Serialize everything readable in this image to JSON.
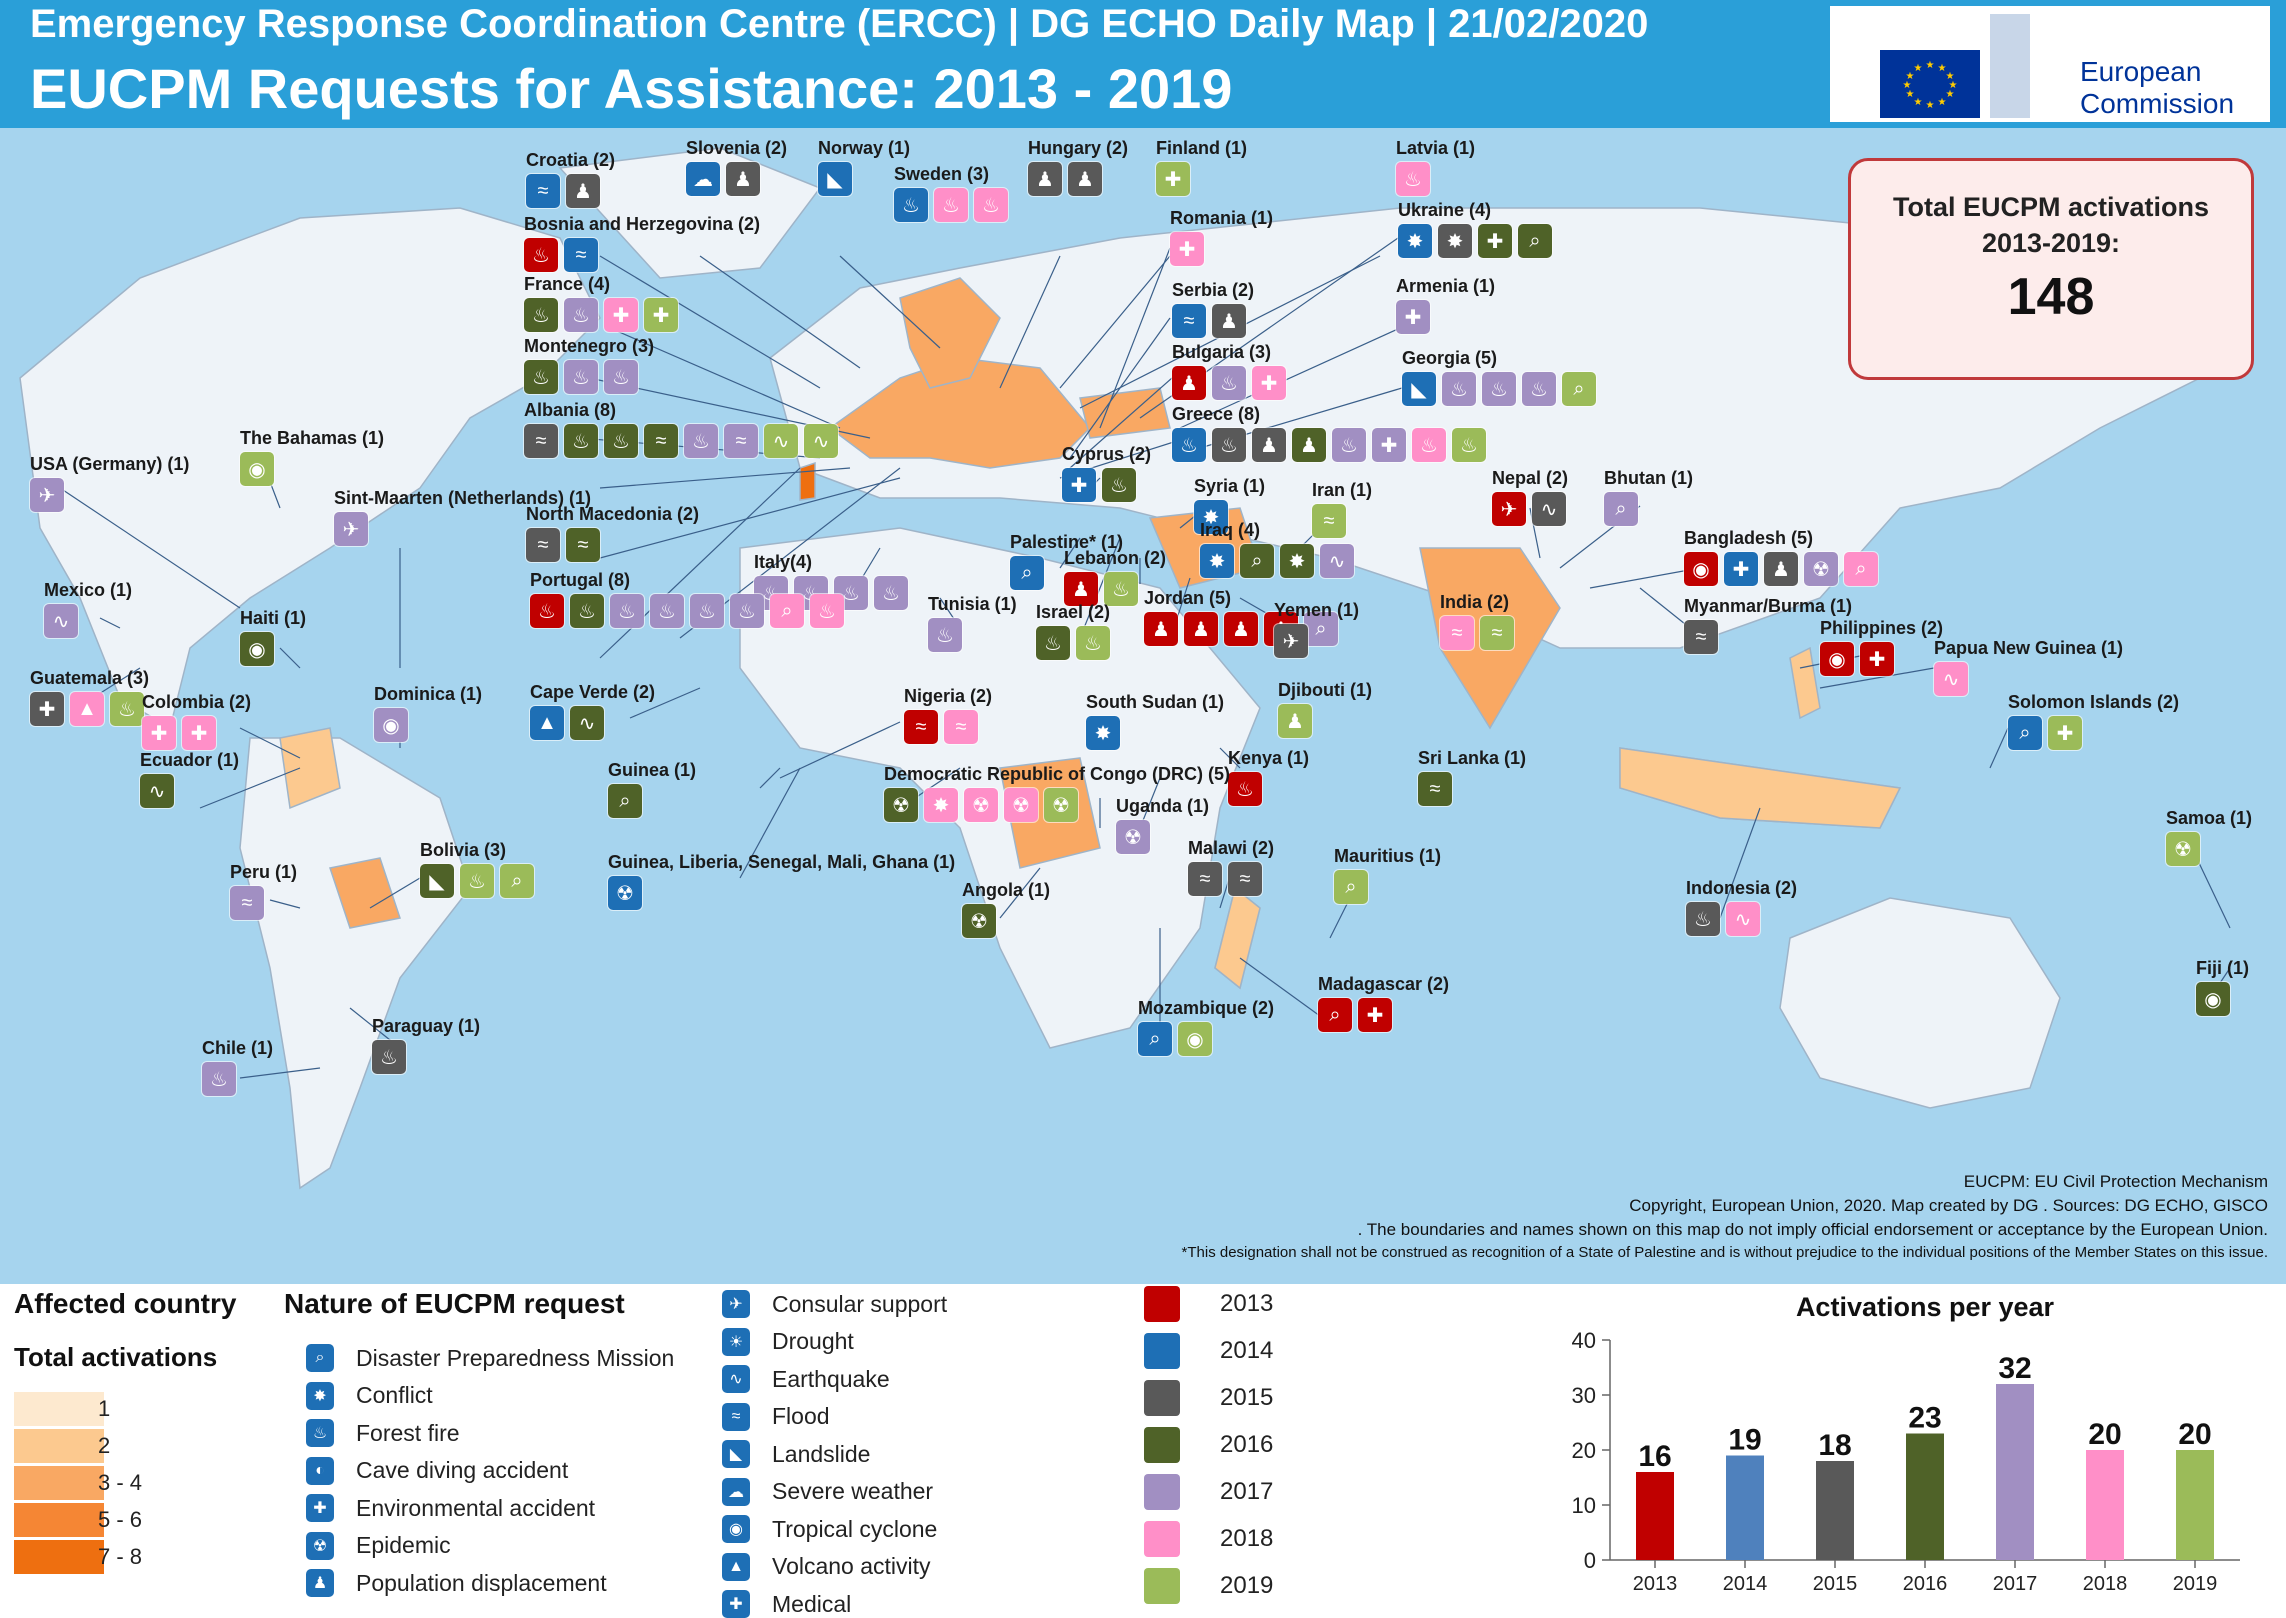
{
  "header": {
    "line1": "Emergency Response Coordination  Centre (ERCC) | DG ECHO  Daily Map  | 21/02/2020",
    "title": "EUCPM Requests for Assistance: 2013 - 2019",
    "logo_text_1": "European",
    "logo_text_2": "Commission"
  },
  "total": {
    "label_1": "Total EUCPM activations",
    "label_2": "2013-2019:",
    "value": "148"
  },
  "colors": {
    "ocean": "#a6d4ee",
    "land": "#eef3f8",
    "y2013": "#c00000",
    "y2014": "#1e6fb5",
    "y2015": "#595959",
    "y2016": "#4f6228",
    "y2017": "#a18fc2",
    "y2018": "#ff8fc8",
    "y2019": "#9bbb59"
  },
  "countries": [
    {
      "name": "Croatia (2)",
      "icons": [
        [
          "y2014",
          "≈"
        ],
        [
          "y2015",
          "♟"
        ]
      ]
    },
    {
      "name": "Slovenia (2)",
      "icons": [
        [
          "y2014",
          "☁"
        ],
        [
          "y2015",
          "♟"
        ]
      ]
    },
    {
      "name": "Norway (1)",
      "icons": [
        [
          "y2014",
          "◣"
        ]
      ]
    },
    {
      "name": "Hungary (2)",
      "icons": [
        [
          "y2015",
          "♟"
        ],
        [
          "y2015",
          "♟"
        ]
      ]
    },
    {
      "name": "Finland (1)",
      "icons": [
        [
          "y2019",
          "✚"
        ]
      ]
    },
    {
      "name": "Latvia (1)",
      "icons": [
        [
          "y2018",
          "♨"
        ]
      ]
    },
    {
      "name": "Sweden (3)",
      "icons": [
        [
          "y2014",
          "♨"
        ],
        [
          "y2018",
          "♨"
        ],
        [
          "y2018",
          "♨"
        ]
      ]
    },
    {
      "name": "Bosnia and Herzegovina (2)",
      "icons": [
        [
          "y2013",
          "♨"
        ],
        [
          "y2014",
          "≈"
        ]
      ]
    },
    {
      "name": "Romania (1)",
      "icons": [
        [
          "y2018",
          "✚"
        ]
      ]
    },
    {
      "name": "Ukraine (4)",
      "icons": [
        [
          "y2014",
          "✸"
        ],
        [
          "y2015",
          "✸"
        ],
        [
          "y2016",
          "✚"
        ],
        [
          "y2016",
          "⌕"
        ]
      ]
    },
    {
      "name": "France (4)",
      "icons": [
        [
          "y2016",
          "♨"
        ],
        [
          "y2017",
          "♨"
        ],
        [
          "y2018",
          "✚"
        ],
        [
          "y2019",
          "✚"
        ]
      ]
    },
    {
      "name": "Serbia (2)",
      "icons": [
        [
          "y2014",
          "≈"
        ],
        [
          "y2015",
          "♟"
        ]
      ]
    },
    {
      "name": "Armenia (1)",
      "icons": [
        [
          "y2017",
          "✚"
        ]
      ]
    },
    {
      "name": "Montenegro (3)",
      "icons": [
        [
          "y2016",
          "♨"
        ],
        [
          "y2017",
          "♨"
        ],
        [
          "y2017",
          "♨"
        ]
      ]
    },
    {
      "name": "Bulgaria (3)",
      "icons": [
        [
          "y2013",
          "♟"
        ],
        [
          "y2017",
          "♨"
        ],
        [
          "y2018",
          "✚"
        ]
      ]
    },
    {
      "name": "Georgia (5)",
      "icons": [
        [
          "y2014",
          "◣"
        ],
        [
          "y2017",
          "♨"
        ],
        [
          "y2017",
          "♨"
        ],
        [
          "y2017",
          "♨"
        ],
        [
          "y2019",
          "⌕"
        ]
      ]
    },
    {
      "name": "Albania (8)",
      "icons": [
        [
          "y2015",
          "≈"
        ],
        [
          "y2016",
          "♨"
        ],
        [
          "y2016",
          "♨"
        ],
        [
          "y2016",
          "≈"
        ],
        [
          "y2017",
          "♨"
        ],
        [
          "y2017",
          "≈"
        ],
        [
          "y2019",
          "∿"
        ],
        [
          "y2019",
          "∿"
        ]
      ]
    },
    {
      "name": "Greece (8)",
      "icons": [
        [
          "y2014",
          "♨"
        ],
        [
          "y2015",
          "♨"
        ],
        [
          "y2015",
          "♟"
        ],
        [
          "y2016",
          "♟"
        ],
        [
          "y2017",
          "♨"
        ],
        [
          "y2017",
          "✚"
        ],
        [
          "y2018",
          "♨"
        ],
        [
          "y2019",
          "♨"
        ]
      ]
    },
    {
      "name": "The Bahamas (1)",
      "icons": [
        [
          "y2019",
          "◉"
        ]
      ]
    },
    {
      "name": "USA (Germany) (1)",
      "icons": [
        [
          "y2017",
          "✈"
        ]
      ]
    },
    {
      "name": "Sint-Maarten (Netherlands) (1)",
      "icons": [
        [
          "y2017",
          "✈"
        ]
      ]
    },
    {
      "name": "Cyprus (2)",
      "icons": [
        [
          "y2014",
          "✚"
        ],
        [
          "y2016",
          "♨"
        ]
      ]
    },
    {
      "name": "Syria (1)",
      "icons": [
        [
          "y2014",
          "✸"
        ]
      ]
    },
    {
      "name": "Iran (1)",
      "icons": [
        [
          "y2019",
          "≈"
        ]
      ]
    },
    {
      "name": "Nepal (2)",
      "icons": [
        [
          "y2013",
          "✈"
        ],
        [
          "y2015",
          "∿"
        ]
      ]
    },
    {
      "name": "Bhutan (1)",
      "icons": [
        [
          "y2017",
          "⌕"
        ]
      ]
    },
    {
      "name": "North Macedonia (2)",
      "icons": [
        [
          "y2015",
          "≈"
        ],
        [
          "y2016",
          "≈"
        ]
      ]
    },
    {
      "name": "Iraq (4)",
      "icons": [
        [
          "y2014",
          "✸"
        ],
        [
          "y2016",
          "⌕"
        ],
        [
          "y2016",
          "✸"
        ],
        [
          "y2017",
          "∿"
        ]
      ]
    },
    {
      "name": "Palestine* (1)",
      "icons": [
        [
          "y2014",
          "⌕"
        ]
      ]
    },
    {
      "name": "Lebanon (2)",
      "icons": [
        [
          "y2013",
          "♟"
        ],
        [
          "y2019",
          "♨"
        ]
      ]
    },
    {
      "name": "Bangladesh (5)",
      "icons": [
        [
          "y2013",
          "◉"
        ],
        [
          "y2014",
          "✚"
        ],
        [
          "y2015",
          "♟"
        ],
        [
          "y2017",
          "☢"
        ],
        [
          "y2018",
          "⌕"
        ]
      ]
    },
    {
      "name": "Italy(4)",
      "icons": [
        [
          "y2017",
          "♨"
        ],
        [
          "y2017",
          "♨"
        ],
        [
          "y2017",
          "♨"
        ],
        [
          "y2017",
          "♨"
        ]
      ]
    },
    {
      "name": "Mexico (1)",
      "icons": [
        [
          "y2017",
          "∿"
        ]
      ]
    },
    {
      "name": "Portugal (8)",
      "icons": [
        [
          "y2013",
          "♨"
        ],
        [
          "y2016",
          "♨"
        ],
        [
          "y2017",
          "♨"
        ],
        [
          "y2017",
          "♨"
        ],
        [
          "y2017",
          "♨"
        ],
        [
          "y2017",
          "♨"
        ],
        [
          "y2018",
          "⌕"
        ],
        [
          "y2018",
          "♨"
        ]
      ]
    },
    {
      "name": "Tunisia (1)",
      "icons": [
        [
          "y2017",
          "♨"
        ]
      ]
    },
    {
      "name": "Israel (2)",
      "icons": [
        [
          "y2016",
          "♨"
        ],
        [
          "y2019",
          "♨"
        ]
      ]
    },
    {
      "name": "Jordan (5)",
      "icons": [
        [
          "y2013",
          "♟"
        ],
        [
          "y2013",
          "♟"
        ],
        [
          "y2013",
          "♟"
        ],
        [
          "y2013",
          "♟"
        ],
        [
          "y2017",
          "⌕"
        ]
      ]
    },
    {
      "name": "Yemen (1)",
      "icons": [
        [
          "y2015",
          "✈"
        ]
      ]
    },
    {
      "name": "India (2)",
      "icons": [
        [
          "y2018",
          "≈"
        ],
        [
          "y2019",
          "≈"
        ]
      ]
    },
    {
      "name": "Myanmar/Burma (1)",
      "icons": [
        [
          "y2015",
          "≈"
        ]
      ]
    },
    {
      "name": "Philippines (2)",
      "icons": [
        [
          "y2013",
          "◉"
        ],
        [
          "y2013",
          "✚"
        ]
      ]
    },
    {
      "name": "Papua New Guinea (1)",
      "icons": [
        [
          "y2018",
          "∿"
        ]
      ]
    },
    {
      "name": "Haiti (1)",
      "icons": [
        [
          "y2016",
          "◉"
        ]
      ]
    },
    {
      "name": "Guatemala (3)",
      "icons": [
        [
          "y2015",
          "✚"
        ],
        [
          "y2018",
          "▲"
        ],
        [
          "y2019",
          "♨"
        ]
      ]
    },
    {
      "name": "Colombia (2)",
      "icons": [
        [
          "y2018",
          "✚"
        ],
        [
          "y2018",
          "✚"
        ]
      ]
    },
    {
      "name": "Dominica (1)",
      "icons": [
        [
          "y2017",
          "◉"
        ]
      ]
    },
    {
      "name": "Cape Verde (2)",
      "icons": [
        [
          "y2014",
          "▲"
        ],
        [
          "y2016",
          "∿"
        ]
      ]
    },
    {
      "name": "Djibouti (1)",
      "icons": [
        [
          "y2019",
          "♟"
        ]
      ]
    },
    {
      "name": "Nigeria (2)",
      "icons": [
        [
          "y2013",
          "≈"
        ],
        [
          "y2018",
          "≈"
        ]
      ]
    },
    {
      "name": "South Sudan (1)",
      "icons": [
        [
          "y2014",
          "✸"
        ]
      ]
    },
    {
      "name": "Kenya (1)",
      "icons": [
        [
          "y2013",
          "♨"
        ]
      ]
    },
    {
      "name": "Sri Lanka (1)",
      "icons": [
        [
          "y2016",
          "≈"
        ]
      ]
    },
    {
      "name": "Solomon Islands (2)",
      "icons": [
        [
          "y2014",
          "⌕"
        ],
        [
          "y2019",
          "✚"
        ]
      ]
    },
    {
      "name": "Ecuador (1)",
      "icons": [
        [
          "y2016",
          "∿"
        ]
      ]
    },
    {
      "name": "Guinea (1)",
      "icons": [
        [
          "y2016",
          "⌕"
        ]
      ]
    },
    {
      "name": "Democratic Republic of Congo (DRC) (5)",
      "icons": [
        [
          "y2016",
          "☢"
        ],
        [
          "y2018",
          "✸"
        ],
        [
          "y2018",
          "☢"
        ],
        [
          "y2018",
          "☢"
        ],
        [
          "y2019",
          "☢"
        ]
      ]
    },
    {
      "name": "Uganda (1)",
      "icons": [
        [
          "y2017",
          "☢"
        ]
      ]
    },
    {
      "name": "Samoa (1)",
      "icons": [
        [
          "y2019",
          "☢"
        ]
      ]
    },
    {
      "name": "Guinea, Liberia, Senegal, Mali, Ghana (1)",
      "icons": [
        [
          "y2014",
          "☢"
        ]
      ]
    },
    {
      "name": "Bolivia (3)",
      "icons": [
        [
          "y2016",
          "◣"
        ],
        [
          "y2019",
          "♨"
        ],
        [
          "y2019",
          "⌕"
        ]
      ]
    },
    {
      "name": "Peru (1)",
      "icons": [
        [
          "y2017",
          "≈"
        ]
      ]
    },
    {
      "name": "Malawi (2)",
      "icons": [
        [
          "y2015",
          "≈"
        ],
        [
          "y2015",
          "≈"
        ]
      ]
    },
    {
      "name": "Mauritius (1)",
      "icons": [
        [
          "y2019",
          "⌕"
        ]
      ]
    },
    {
      "name": "Indonesia (2)",
      "icons": [
        [
          "y2015",
          "♨"
        ],
        [
          "y2018",
          "∿"
        ]
      ]
    },
    {
      "name": "Angola (1)",
      "icons": [
        [
          "y2016",
          "☢"
        ]
      ]
    },
    {
      "name": "Fiji (1)",
      "icons": [
        [
          "y2016",
          "◉"
        ]
      ]
    },
    {
      "name": "Madagascar (2)",
      "icons": [
        [
          "y2013",
          "⌕"
        ],
        [
          "y2013",
          "✚"
        ]
      ]
    },
    {
      "name": "Mozambique (2)",
      "icons": [
        [
          "y2014",
          "⌕"
        ],
        [
          "y2019",
          "◉"
        ]
      ]
    },
    {
      "name": "Paraguay (1)",
      "icons": [
        [
          "y2015",
          "♨"
        ]
      ]
    },
    {
      "name": "Chile (1)",
      "icons": [
        [
          "y2017",
          "♨"
        ]
      ]
    }
  ],
  "credits": {
    "c1": "EUCPM: EU Civil Protection Mechanism",
    "c2": "Copyright, European Union, 2020. Map created by DG .  Sources: DG ECHO, GISCO",
    "c3": ". The boundaries and names shown on this map do not imply official endorsement or acceptance by the European Union.",
    "c4": "*This designation shall not be construed as recognition of a State of Palestine and is without prejudice to the individual positions of the Member States on this issue."
  },
  "legend": {
    "affected_title": "Affected country",
    "total_title": "Total activations",
    "classes": [
      "1",
      "2",
      "3 - 4",
      "5 - 6",
      "7 - 8"
    ],
    "class_colors": [
      "#fde9cf",
      "#fcc98f",
      "#f9a863",
      "#f58634",
      "#ee6f10"
    ],
    "nature_title": "Nature of EUCPM request",
    "nature_col1": [
      {
        "icon": "⌕",
        "label": "Disaster Preparedness Mission"
      },
      {
        "icon": "✸",
        "label": "Conflict"
      },
      {
        "icon": "♨",
        "label": "Forest fire"
      },
      {
        "icon": "◐",
        "label": "Cave diving accident"
      },
      {
        "icon": "✚",
        "label": "Environmental accident"
      },
      {
        "icon": "☢",
        "label": "Epidemic"
      },
      {
        "icon": "♟",
        "label": "Population displacement"
      }
    ],
    "nature_col2": [
      {
        "icon": "✈",
        "label": "Consular support"
      },
      {
        "icon": "☀",
        "label": "Drought"
      },
      {
        "icon": "∿",
        "label": "Earthquake"
      },
      {
        "icon": "≈",
        "label": "Flood"
      },
      {
        "icon": "◣",
        "label": "Landslide"
      },
      {
        "icon": "☁",
        "label": "Severe weather"
      },
      {
        "icon": "◉",
        "label": "Tropical cyclone"
      },
      {
        "icon": "▲",
        "label": "Volcano activity"
      },
      {
        "icon": "✚",
        "label": "Medical"
      }
    ],
    "years": [
      "2013",
      "2014",
      "2015",
      "2016",
      "2017",
      "2018",
      "2019"
    ]
  },
  "chart_data": {
    "type": "bar",
    "title": "Activations per year",
    "categories": [
      "2013",
      "2014",
      "2015",
      "2016",
      "2017",
      "2018",
      "2019"
    ],
    "values": [
      16,
      19,
      18,
      23,
      32,
      20,
      20
    ],
    "colors": [
      "#c00000",
      "#4f81bd",
      "#595959",
      "#4f6228",
      "#a18fc2",
      "#ff8fc8",
      "#9bbb59"
    ],
    "ylim": [
      0,
      40
    ],
    "yticks": [
      0,
      10,
      20,
      30,
      40
    ],
    "xlabel": "",
    "ylabel": ""
  }
}
